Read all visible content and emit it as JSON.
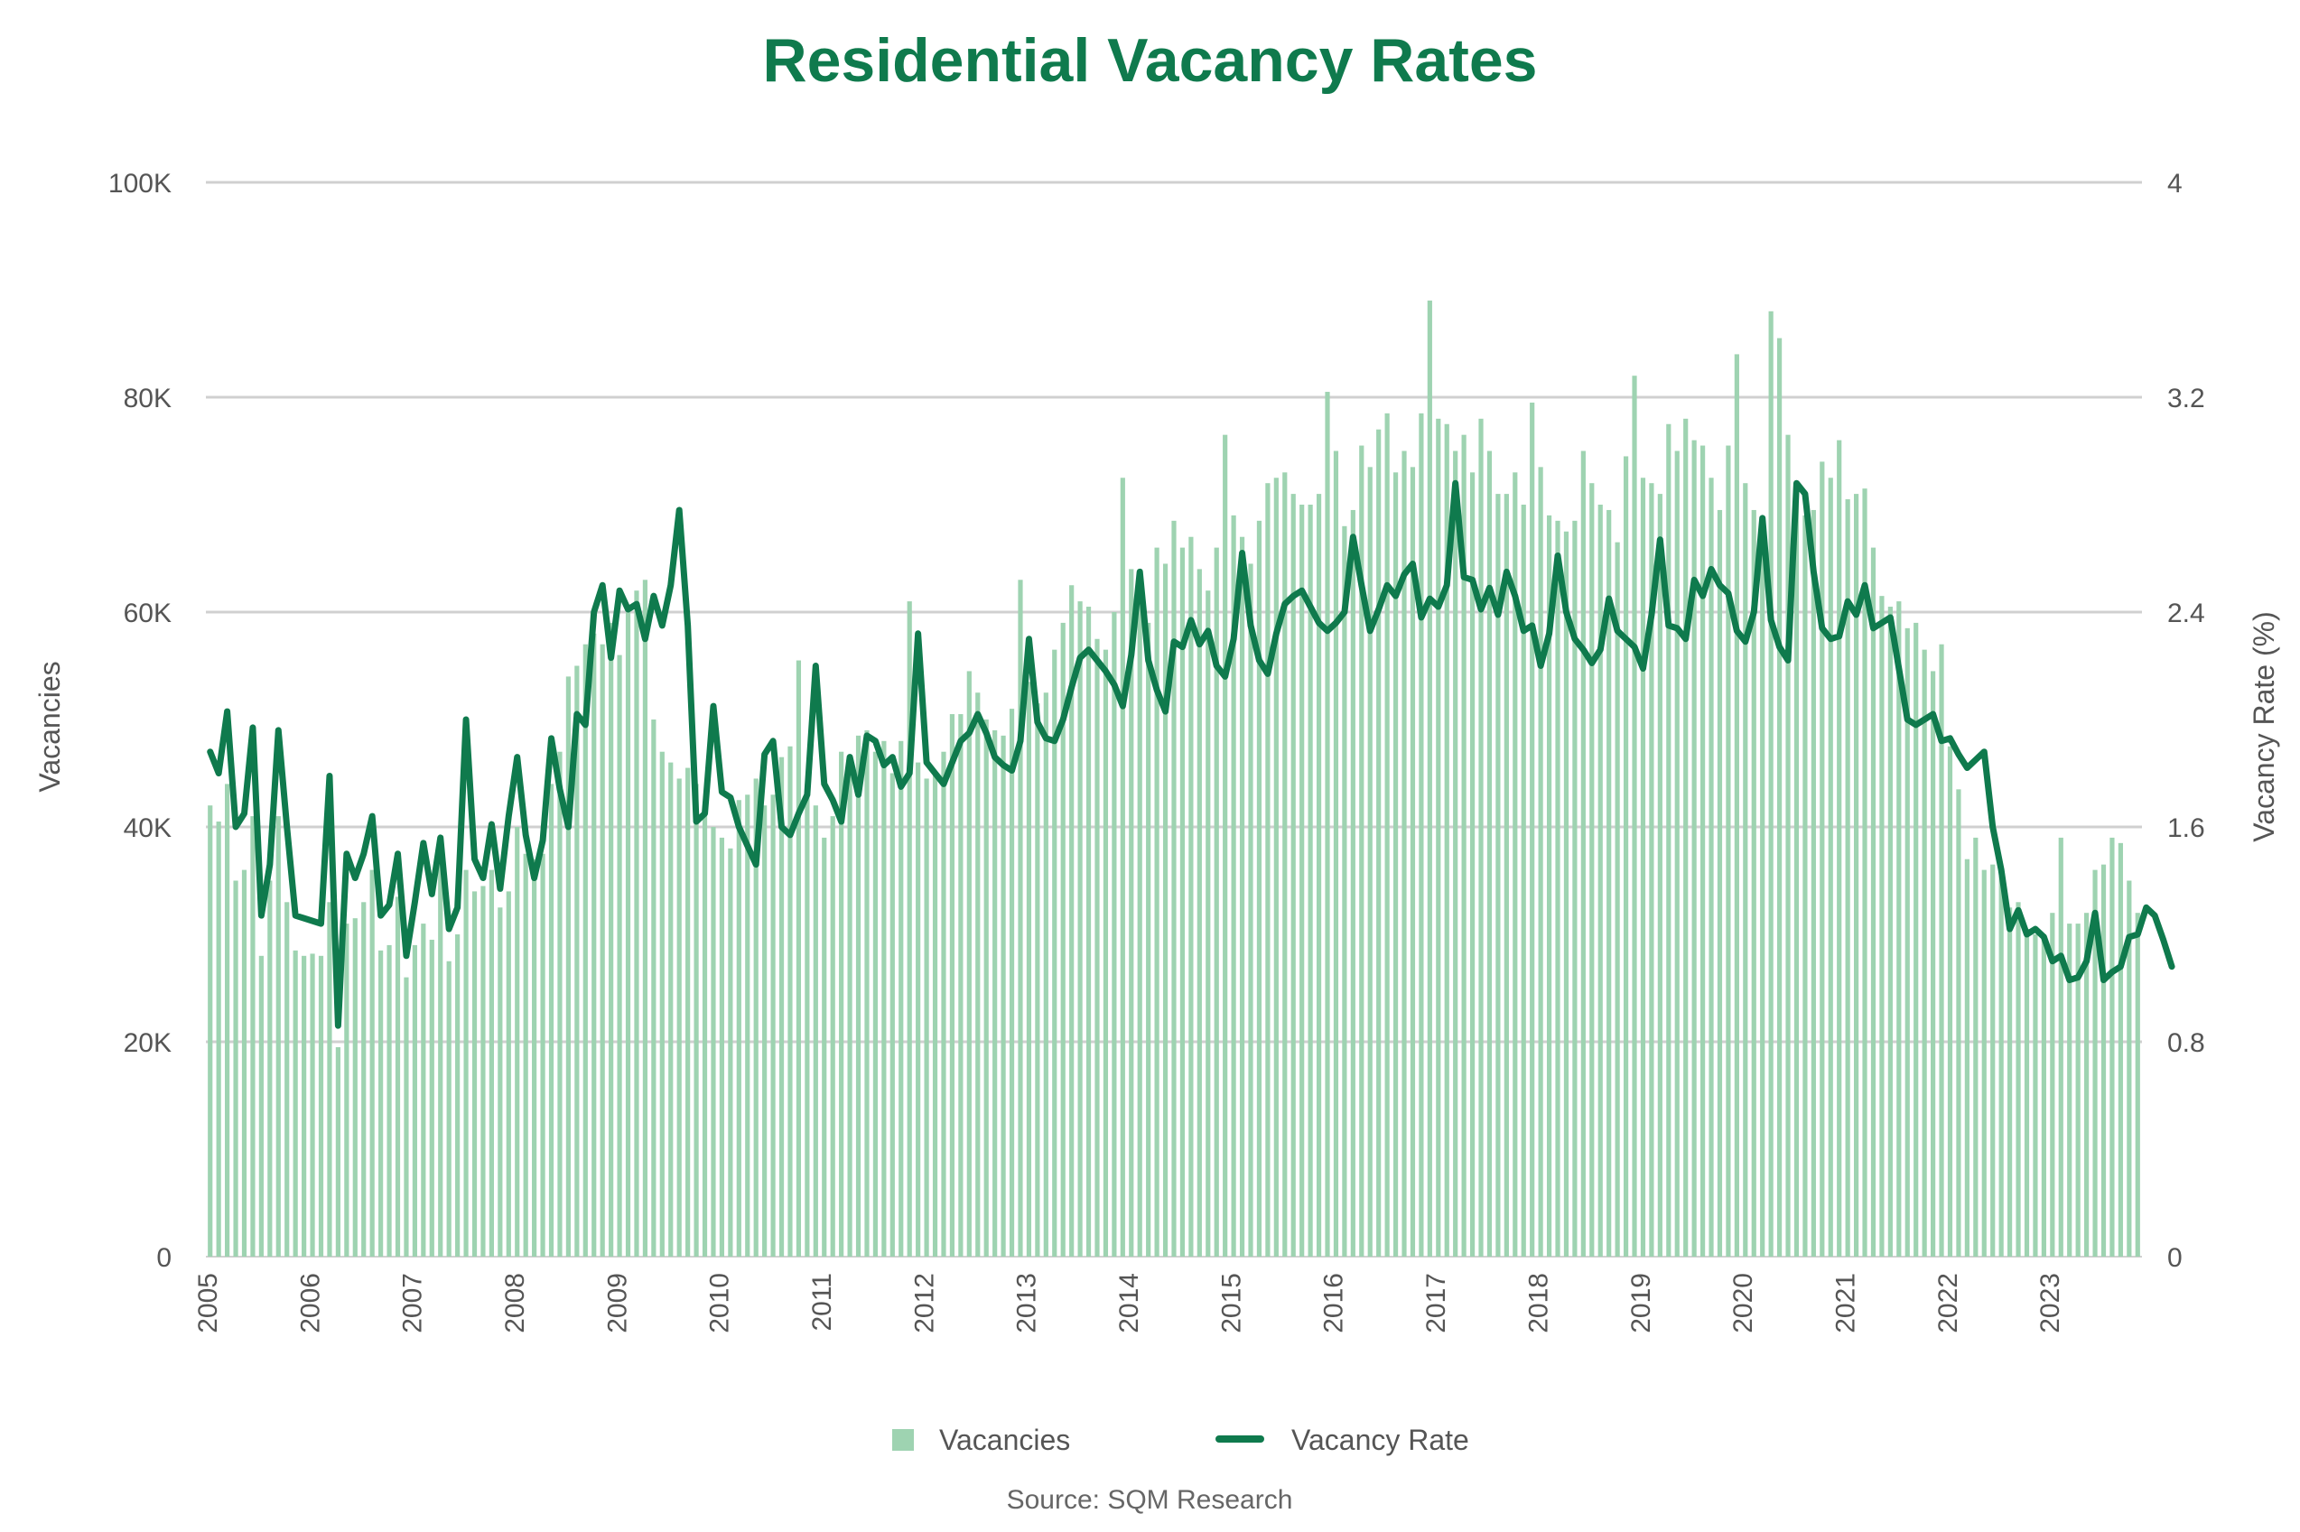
{
  "chart_data": {
    "type": "bar+line",
    "title": "Residential Vacancy Rates",
    "source": "Source: SQM Research",
    "ylabel_left": "Vacancies",
    "ylabel_right": "Vacancy Rate (%)",
    "ylim_left": [
      0,
      100000
    ],
    "ylim_right": [
      0,
      4
    ],
    "yticks_left": [
      "0",
      "20K",
      "40K",
      "60K",
      "80K",
      "100K"
    ],
    "yticks_right": [
      "0",
      "0.8",
      "1.6",
      "2.4",
      "3.2",
      "4"
    ],
    "x_start": "2005-01",
    "xticks": [
      "2005",
      "2006",
      "2007",
      "2008",
      "2009",
      "2010",
      "2011",
      "2012",
      "2013",
      "2014",
      "2015",
      "2016",
      "2017",
      "2018",
      "2019",
      "2020",
      "2021",
      "2022",
      "2023"
    ],
    "grid": true,
    "legend_position": "bottom",
    "colors": {
      "bars": "#9ed3b1",
      "line": "#0f7a4d",
      "title": "#0f7a4d",
      "grid": "#d0d0d0"
    },
    "series": [
      {
        "name": "Vacancies",
        "kind": "bar",
        "axis": "left",
        "values": [
          42000,
          40500,
          44000,
          35000,
          36000,
          41000,
          28000,
          35000,
          41000,
          33000,
          28500,
          28000,
          28200,
          28000,
          33000,
          19500,
          31000,
          31500,
          33000,
          36000,
          28500,
          29000,
          33500,
          26000,
          29000,
          31000,
          29500,
          38000,
          27500,
          30000,
          36000,
          34000,
          34500,
          36000,
          32500,
          34000,
          40000,
          37500,
          37000,
          37500,
          44000,
          47000,
          54000,
          55000,
          57000,
          58000,
          57000,
          59000,
          56000,
          60000,
          62000,
          63000,
          50000,
          47000,
          46000,
          44500,
          45500,
          44000,
          42000,
          40000,
          39000,
          38000,
          42500,
          43000,
          44500,
          42000,
          43000,
          46500,
          47500,
          55500,
          44000,
          42000,
          39000,
          41000,
          47000,
          46000,
          48500,
          49000,
          47000,
          48000,
          45000,
          48000,
          61000,
          46000,
          44500,
          45000,
          47000,
          50500,
          50500,
          54500,
          52500,
          50000,
          49000,
          48500,
          51000,
          63000,
          53500,
          51500,
          52500,
          56500,
          59000,
          62500,
          61000,
          60500,
          57500,
          56500,
          60000,
          72500,
          64000,
          63000,
          59000,
          66000,
          64500,
          68500,
          66000,
          67000,
          64000,
          62000,
          66000,
          76500,
          69000,
          67000,
          64500,
          68500,
          72000,
          72500,
          73000,
          71000,
          70000,
          70000,
          71000,
          80500,
          75000,
          68000,
          69500,
          75500,
          73500,
          77000,
          78500,
          73000,
          75000,
          73500,
          78500,
          89000,
          78000,
          77500,
          75000,
          76500,
          73000,
          78000,
          75000,
          71000,
          71000,
          73000,
          70000,
          79500,
          73500,
          69000,
          68500,
          67500,
          68500,
          75000,
          72000,
          70000,
          69500,
          66500,
          74500,
          82000,
          72500,
          72000,
          71000,
          77500,
          75000,
          78000,
          76000,
          75500,
          72500,
          69500,
          75500,
          84000,
          72000,
          69500,
          68500,
          88000,
          85500,
          76500,
          71000,
          69000,
          69500,
          74000,
          72500,
          76000,
          70500,
          71000,
          71500,
          66000,
          61500,
          60500,
          61000,
          58500,
          59000,
          56500,
          54500,
          57000,
          47500,
          43500,
          37000,
          39000,
          36000,
          36500,
          36000,
          32500,
          33000,
          30500,
          30000,
          30000,
          32000,
          39000,
          31000,
          31000,
          32000,
          36000,
          36500,
          39000,
          38500,
          35000,
          32000
        ]
      },
      {
        "name": "Vacancy Rate",
        "kind": "line",
        "axis": "right",
        "values": [
          1.88,
          1.8,
          2.03,
          1.6,
          1.65,
          1.97,
          1.27,
          1.46,
          1.96,
          1.6,
          1.27,
          1.26,
          1.25,
          1.24,
          1.79,
          0.86,
          1.5,
          1.41,
          1.5,
          1.64,
          1.27,
          1.31,
          1.5,
          1.12,
          1.32,
          1.54,
          1.35,
          1.56,
          1.22,
          1.3,
          2.0,
          1.48,
          1.41,
          1.61,
          1.37,
          1.64,
          1.86,
          1.57,
          1.41,
          1.55,
          1.93,
          1.74,
          1.6,
          2.02,
          1.98,
          2.4,
          2.5,
          2.23,
          2.48,
          2.41,
          2.43,
          2.3,
          2.46,
          2.35,
          2.5,
          2.78,
          2.35,
          1.62,
          1.65,
          2.05,
          1.73,
          1.71,
          1.6,
          1.53,
          1.46,
          1.87,
          1.92,
          1.6,
          1.57,
          1.65,
          1.72,
          2.2,
          1.76,
          1.7,
          1.62,
          1.86,
          1.72,
          1.94,
          1.92,
          1.83,
          1.86,
          1.75,
          1.8,
          2.32,
          1.84,
          1.8,
          1.76,
          1.84,
          1.92,
          1.95,
          2.02,
          1.95,
          1.86,
          1.83,
          1.81,
          1.92,
          2.3,
          1.99,
          1.93,
          1.92,
          2.0,
          2.12,
          2.23,
          2.26,
          2.22,
          2.18,
          2.13,
          2.05,
          2.24,
          2.55,
          2.22,
          2.11,
          2.03,
          2.29,
          2.27,
          2.37,
          2.28,
          2.33,
          2.2,
          2.16,
          2.3,
          2.62,
          2.35,
          2.22,
          2.17,
          2.32,
          2.43,
          2.46,
          2.48,
          2.42,
          2.36,
          2.33,
          2.36,
          2.4,
          2.68,
          2.5,
          2.33,
          2.41,
          2.5,
          2.46,
          2.54,
          2.58,
          2.38,
          2.45,
          2.42,
          2.5,
          2.88,
          2.53,
          2.52,
          2.41,
          2.49,
          2.39,
          2.55,
          2.46,
          2.33,
          2.35,
          2.2,
          2.32,
          2.61,
          2.4,
          2.3,
          2.26,
          2.21,
          2.26,
          2.45,
          2.33,
          2.3,
          2.27,
          2.19,
          2.39,
          2.67,
          2.35,
          2.34,
          2.3,
          2.52,
          2.46,
          2.56,
          2.5,
          2.47,
          2.33,
          2.29,
          2.4,
          2.75,
          2.37,
          2.27,
          2.22,
          2.88,
          2.84,
          2.55,
          2.34,
          2.3,
          2.31,
          2.44,
          2.39,
          2.5,
          2.34,
          2.36,
          2.38,
          2.19,
          2.0,
          1.98,
          2.0,
          2.02,
          1.92,
          1.93,
          1.87,
          1.82,
          1.85,
          1.88,
          1.6,
          1.44,
          1.22,
          1.29,
          1.2,
          1.22,
          1.19,
          1.1,
          1.12,
          1.03,
          1.04,
          1.1,
          1.28,
          1.03,
          1.06,
          1.08,
          1.19,
          1.2,
          1.3,
          1.27,
          1.18,
          1.08
        ]
      }
    ]
  },
  "legend": {
    "bars_label": "Vacancies",
    "line_label": "Vacancy Rate"
  }
}
